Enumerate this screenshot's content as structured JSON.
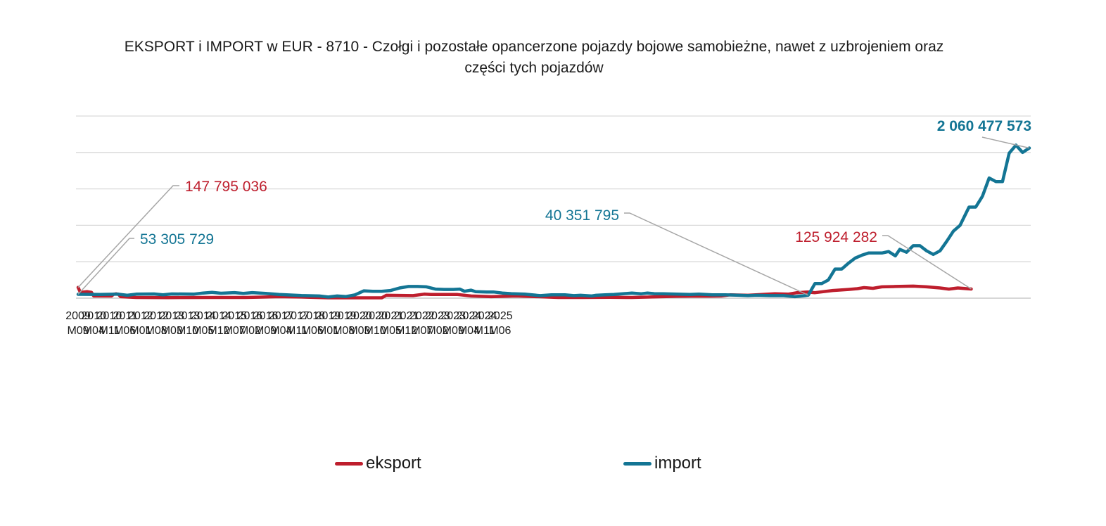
{
  "chart_data": {
    "type": "line",
    "title_line1": "EKSPORT i IMPORT w EUR - 8710 - Czołgi i pozostałe opancerzone pojazdy bojowe samobieżne, nawet z uzbrojeniem oraz",
    "title_line2": "części tych pojazdów",
    "xlabel": "",
    "ylabel": "",
    "ylim": [
      0,
      2500000000
    ],
    "grid": true,
    "legend_position": "bottom",
    "x_tick_labels": [
      [
        "2009",
        "M09"
      ],
      [
        "2010",
        "M04"
      ],
      [
        "2010",
        "M11"
      ],
      [
        "2011",
        "M06"
      ],
      [
        "2012",
        "M01"
      ],
      [
        "2012",
        "M08"
      ],
      [
        "2013",
        "M03"
      ],
      [
        "2013",
        "M10"
      ],
      [
        "2014",
        "M05"
      ],
      [
        "2014",
        "M12"
      ],
      [
        "2015",
        "M07"
      ],
      [
        "2016",
        "M02"
      ],
      [
        "2016",
        "M09"
      ],
      [
        "2017",
        "M04"
      ],
      [
        "2017",
        "M11"
      ],
      [
        "2018",
        "M06"
      ],
      [
        "2019",
        "M01"
      ],
      [
        "2019",
        "M08"
      ],
      [
        "2020",
        "M03"
      ],
      [
        "2020",
        "M10"
      ],
      [
        "2021",
        "M05"
      ],
      [
        "2021",
        "M12"
      ],
      [
        "2022",
        "M07"
      ],
      [
        "2023",
        "M02"
      ],
      [
        "2023",
        "M09"
      ],
      [
        "2024",
        "M04"
      ],
      [
        "2024",
        "M11"
      ],
      [
        "2025",
        "M06"
      ]
    ],
    "series": [
      {
        "name": "eksport",
        "color": "#be1e2d",
        "points": [
          [
            0,
            147795036
          ],
          [
            1,
            80000000
          ],
          [
            4,
            90000000
          ],
          [
            6,
            80000000
          ],
          [
            7,
            30000000
          ],
          [
            15,
            30000000
          ],
          [
            16,
            55000000
          ],
          [
            17,
            60000000
          ],
          [
            18,
            55000000
          ],
          [
            19,
            20000000
          ],
          [
            26,
            10000000
          ],
          [
            40,
            8000000
          ],
          [
            60,
            10000000
          ],
          [
            75,
            10000000
          ],
          [
            90,
            20000000
          ],
          [
            100,
            15000000
          ],
          [
            112,
            5000000
          ],
          [
            136,
            5000000
          ],
          [
            138,
            40000000
          ],
          [
            150,
            35000000
          ],
          [
            155,
            55000000
          ],
          [
            158,
            50000000
          ],
          [
            170,
            50000000
          ],
          [
            176,
            30000000
          ],
          [
            185,
            20000000
          ],
          [
            196,
            30000000
          ],
          [
            206,
            20000000
          ],
          [
            215,
            10000000
          ],
          [
            226,
            10000000
          ],
          [
            238,
            12000000
          ],
          [
            248,
            10000000
          ],
          [
            268,
            25000000
          ],
          [
            275,
            28000000
          ],
          [
            283,
            28000000
          ],
          [
            288,
            30000000
          ],
          [
            292,
            45000000
          ],
          [
            300,
            40000000
          ],
          [
            312,
            60000000
          ],
          [
            318,
            55000000
          ],
          [
            322,
            75000000
          ],
          [
            327,
            85000000
          ],
          [
            330,
            75000000
          ],
          [
            338,
            105000000
          ],
          [
            345,
            120000000
          ],
          [
            349,
            130000000
          ],
          [
            352,
            145000000
          ],
          [
            356,
            135000000
          ],
          [
            360,
            155000000
          ],
          [
            366,
            160000000
          ],
          [
            374,
            165000000
          ],
          [
            380,
            155000000
          ],
          [
            386,
            140000000
          ],
          [
            390,
            125000000
          ],
          [
            394,
            140000000
          ],
          [
            400,
            125924282
          ]
        ]
      },
      {
        "name": "import",
        "color": "#137594",
        "points": [
          [
            0,
            53305729
          ],
          [
            10,
            50000000
          ],
          [
            18,
            55000000
          ],
          [
            22,
            40000000
          ],
          [
            26,
            55000000
          ],
          [
            34,
            58000000
          ],
          [
            38,
            45000000
          ],
          [
            42,
            58000000
          ],
          [
            52,
            56000000
          ],
          [
            56,
            70000000
          ],
          [
            60,
            80000000
          ],
          [
            64,
            68000000
          ],
          [
            70,
            76000000
          ],
          [
            74,
            66000000
          ],
          [
            78,
            76000000
          ],
          [
            84,
            66000000
          ],
          [
            90,
            50000000
          ],
          [
            100,
            36000000
          ],
          [
            108,
            30000000
          ],
          [
            112,
            15000000
          ],
          [
            116,
            30000000
          ],
          [
            120,
            22000000
          ],
          [
            124,
            45000000
          ],
          [
            128,
            100000000
          ],
          [
            132,
            95000000
          ],
          [
            136,
            95000000
          ],
          [
            140,
            105000000
          ],
          [
            144,
            140000000
          ],
          [
            148,
            160000000
          ],
          [
            152,
            160000000
          ],
          [
            156,
            155000000
          ],
          [
            160,
            125000000
          ],
          [
            164,
            120000000
          ],
          [
            168,
            120000000
          ],
          [
            171,
            125000000
          ],
          [
            173,
            95000000
          ],
          [
            176,
            110000000
          ],
          [
            178,
            90000000
          ],
          [
            183,
            85000000
          ],
          [
            186,
            85000000
          ],
          [
            190,
            70000000
          ],
          [
            194,
            62000000
          ],
          [
            200,
            55000000
          ],
          [
            207,
            35000000
          ],
          [
            212,
            45000000
          ],
          [
            218,
            45000000
          ],
          [
            222,
            35000000
          ],
          [
            225,
            40000000
          ],
          [
            230,
            30000000
          ],
          [
            232,
            40000000
          ],
          [
            236,
            45000000
          ],
          [
            240,
            50000000
          ],
          [
            244,
            60000000
          ],
          [
            248,
            70000000
          ],
          [
            252,
            60000000
          ],
          [
            255,
            70000000
          ],
          [
            258,
            62000000
          ],
          [
            262,
            60000000
          ],
          [
            268,
            55000000
          ],
          [
            274,
            50000000
          ],
          [
            278,
            55000000
          ],
          [
            284,
            45000000
          ],
          [
            290,
            45000000
          ],
          [
            296,
            40000000
          ],
          [
            300,
            35000000
          ],
          [
            304,
            40000000
          ],
          [
            310,
            35000000
          ],
          [
            316,
            35000000
          ],
          [
            321,
            20000000
          ],
          [
            324,
            30000000
          ],
          [
            327,
            40351795
          ],
          [
            330,
            200000000
          ],
          [
            333,
            200000000
          ],
          [
            336,
            250000000
          ],
          [
            339,
            400000000
          ],
          [
            342,
            400000000
          ],
          [
            345,
            480000000
          ],
          [
            348,
            550000000
          ],
          [
            351,
            590000000
          ],
          [
            354,
            620000000
          ],
          [
            357,
            620000000
          ],
          [
            360,
            620000000
          ],
          [
            363,
            640000000
          ],
          [
            366,
            580000000
          ],
          [
            368,
            670000000
          ],
          [
            371,
            630000000
          ],
          [
            374,
            720000000
          ],
          [
            377,
            720000000
          ],
          [
            380,
            650000000
          ],
          [
            383,
            600000000
          ],
          [
            386,
            650000000
          ],
          [
            389,
            780000000
          ],
          [
            392,
            920000000
          ],
          [
            395,
            1000000000
          ],
          [
            399,
            1250000000
          ],
          [
            402,
            1250000000
          ],
          [
            405,
            1400000000
          ],
          [
            408,
            1650000000
          ],
          [
            411,
            1600000000
          ],
          [
            414,
            1600000000
          ],
          [
            417,
            1990000000
          ],
          [
            420,
            2100000000
          ],
          [
            423,
            2000000000
          ],
          [
            426,
            2060477573
          ]
        ]
      }
    ],
    "annotations": [
      {
        "text": "147 795 036",
        "series": "eksport",
        "index": 0
      },
      {
        "text": "53 305 729",
        "series": "import",
        "index": 0
      },
      {
        "text": "40 351 795",
        "series": "import",
        "index": 327
      },
      {
        "text": "125 924 282",
        "series": "eksport",
        "index": 400
      },
      {
        "text": "2 060 477 573",
        "series": "import",
        "index": 426
      }
    ]
  },
  "legend": {
    "eksport_label": "eksport",
    "import_label": "import"
  }
}
